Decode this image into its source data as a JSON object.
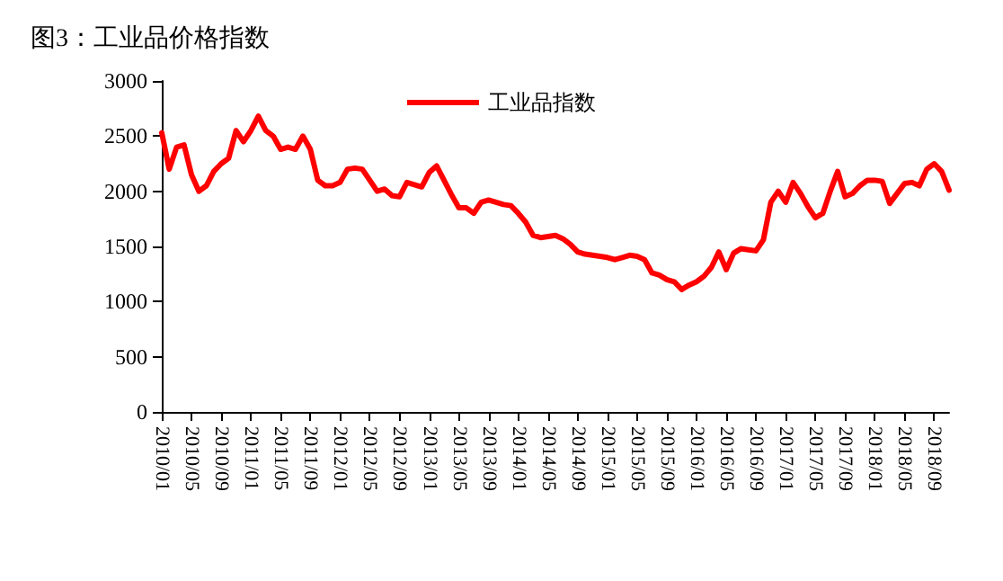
{
  "chart_data": {
    "type": "line",
    "title": "图3：工业品价格指数",
    "categories": [
      "2010/01",
      null,
      null,
      null,
      "2010/05",
      null,
      null,
      null,
      "2010/09",
      null,
      null,
      null,
      "2011/01",
      null,
      null,
      null,
      "2011/05",
      null,
      null,
      null,
      "2011/09",
      null,
      null,
      null,
      "2012/01",
      null,
      null,
      null,
      "2012/05",
      null,
      null,
      null,
      "2012/09",
      null,
      null,
      null,
      "2013/01",
      null,
      null,
      null,
      "2013/05",
      null,
      null,
      null,
      "2013/09",
      null,
      null,
      null,
      "2014/01",
      null,
      null,
      null,
      "2014/05",
      null,
      null,
      null,
      "2014/09",
      null,
      null,
      null,
      "2015/01",
      null,
      null,
      null,
      "2015/05",
      null,
      null,
      null,
      "2015/09",
      null,
      null,
      null,
      "2016/01",
      null,
      null,
      null,
      "2016/05",
      null,
      null,
      null,
      "2016/09",
      null,
      null,
      null,
      "2017/01",
      null,
      null,
      null,
      "2017/05",
      null,
      null,
      null,
      "2017/09",
      null,
      null,
      null,
      "2018/01",
      null,
      null,
      null,
      "2018/05",
      null,
      null,
      null,
      "2018/09",
      null,
      null
    ],
    "series": [
      {
        "name": "工业品指数",
        "color": "#ff0000",
        "values": [
          2530,
          2200,
          2400,
          2420,
          2150,
          2000,
          2050,
          2180,
          2250,
          2300,
          2550,
          2450,
          2550,
          2680,
          2550,
          2500,
          2380,
          2400,
          2380,
          2500,
          2380,
          2100,
          2050,
          2050,
          2080,
          2200,
          2210,
          2200,
          2100,
          2000,
          2020,
          1960,
          1950,
          2080,
          2060,
          2040,
          2170,
          2230,
          2100,
          1970,
          1850,
          1850,
          1800,
          1900,
          1920,
          1900,
          1880,
          1870,
          1800,
          1720,
          1600,
          1580,
          1590,
          1600,
          1570,
          1520,
          1450,
          1430,
          1420,
          1410,
          1400,
          1380,
          1400,
          1420,
          1410,
          1380,
          1260,
          1240,
          1200,
          1180,
          1110,
          1150,
          1180,
          1230,
          1310,
          1450,
          1290,
          1440,
          1480,
          1470,
          1460,
          1560,
          1900,
          2000,
          1900,
          2080,
          1980,
          1860,
          1760,
          1800,
          2000,
          2180,
          1950,
          1980,
          2050,
          2100,
          2100,
          2090,
          1890,
          1980,
          2070,
          2080,
          2050,
          2200,
          2250,
          2180,
          2010
        ]
      }
    ],
    "ylim": [
      0,
      3000
    ],
    "yticks": [
      0,
      500,
      1000,
      1500,
      2000,
      2500,
      3000
    ],
    "grid": false,
    "legend": "top",
    "marker": "none",
    "line_style": "solid"
  }
}
